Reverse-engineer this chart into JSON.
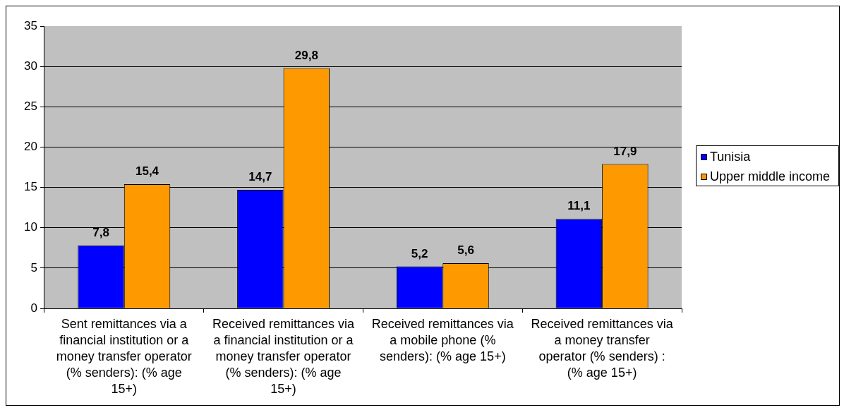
{
  "chart_data": {
    "type": "bar",
    "categories": [
      "Sent remittances via a financial institution or a money transfer operator (% senders): (% age 15+)",
      "Received remittances via a financial institution or a money transfer operator (% senders): (% age 15+)",
      "Received remittances via a mobile phone (% senders): (% age 15+)",
      "Received remittances via a money transfer operator (% senders) : (% age 15+)"
    ],
    "series": [
      {
        "name": "Tunisia",
        "color": "#0000ff",
        "values": [
          7.8,
          14.7,
          5.2,
          11.1
        ],
        "value_labels": [
          "7,8",
          "14,7",
          "5,2",
          "11,1"
        ]
      },
      {
        "name": "Upper middle income",
        "color": "#ff9900",
        "values": [
          15.4,
          29.8,
          5.6,
          17.9
        ],
        "value_labels": [
          "15,4",
          "29,8",
          "5,6",
          "17,9"
        ]
      }
    ],
    "ylim": [
      0,
      35
    ],
    "yticks": [
      0,
      5,
      10,
      15,
      20,
      25,
      30,
      35
    ],
    "grid": "y",
    "legend": "right"
  }
}
